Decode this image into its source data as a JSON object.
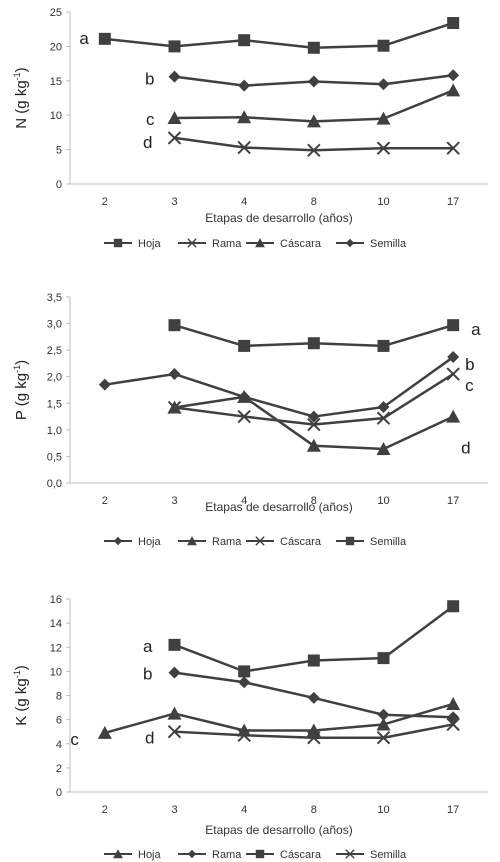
{
  "colors": {
    "line": "#404040",
    "axis": "#bfbfbf",
    "grid": "#d9d9d9"
  },
  "chart_data": [
    {
      "type": "line",
      "categories": [
        "2",
        "3",
        "4",
        "8",
        "10",
        "17"
      ],
      "ylabel_main": "N (g kg",
      "ylabel_sup": "-1",
      "ylabel_close": ")",
      "xlabel": "Etapas de desarrollo (años)",
      "ylim": [
        0,
        25
      ],
      "yticks": [
        "0",
        "5",
        "10",
        "15",
        "20",
        "25"
      ],
      "legend_position": "bottom",
      "series": [
        {
          "name": "Hoja",
          "marker": "square",
          "values": [
            21.1,
            20.0,
            20.9,
            19.8,
            20.1,
            23.4
          ],
          "annotation": "a"
        },
        {
          "name": "Rama",
          "marker": "cross",
          "values": [
            null,
            6.7,
            5.3,
            4.9,
            5.2,
            5.2
          ],
          "annotation": "d"
        },
        {
          "name": "Cáscara",
          "marker": "triangle",
          "values": [
            null,
            9.6,
            9.7,
            9.1,
            9.5,
            13.6
          ],
          "annotation": "c"
        },
        {
          "name": "Semilla",
          "marker": "diamond",
          "values": [
            null,
            15.6,
            14.3,
            14.9,
            14.5,
            15.8
          ],
          "annotation": "b"
        }
      ]
    },
    {
      "type": "line",
      "categories": [
        "2",
        "3",
        "4",
        "8",
        "10",
        "17"
      ],
      "ylabel_main": "P (g kg",
      "ylabel_sup": "-1",
      "ylabel_close": ")",
      "xlabel": "Etapas de desarrollo (años)",
      "ylim": [
        0,
        3.5
      ],
      "yticks": [
        "0,0",
        "0,5",
        "1,0",
        "1,5",
        "2,0",
        "2,5",
        "3,0",
        "3,5"
      ],
      "legend_position": "bottom",
      "series": [
        {
          "name": "Hoja",
          "marker": "diamond",
          "values": [
            1.85,
            2.05,
            1.62,
            1.25,
            1.43,
            2.37
          ],
          "annotation": "b"
        },
        {
          "name": "Rama",
          "marker": "triangle",
          "values": [
            null,
            1.42,
            1.62,
            0.7,
            0.64,
            1.25
          ],
          "annotation": "d"
        },
        {
          "name": "Cáscara",
          "marker": "cross",
          "values": [
            null,
            1.42,
            1.25,
            1.1,
            1.22,
            2.05
          ],
          "annotation": "c"
        },
        {
          "name": "Semilla",
          "marker": "square",
          "values": [
            null,
            2.97,
            2.58,
            2.63,
            2.58,
            2.97
          ],
          "annotation": "a"
        }
      ]
    },
    {
      "type": "line",
      "categories": [
        "2",
        "3",
        "4",
        "8",
        "10",
        "17"
      ],
      "ylabel_main": "K (g kg",
      "ylabel_sup": "-1",
      "ylabel_close": ")",
      "xlabel": "Etapas de desarrollo (años)",
      "ylim": [
        0,
        16
      ],
      "yticks": [
        "0",
        "2",
        "4",
        "6",
        "8",
        "10",
        "12",
        "14",
        "16"
      ],
      "legend_position": "bottom",
      "series": [
        {
          "name": "Hoja",
          "marker": "triangle",
          "values": [
            4.9,
            6.5,
            5.1,
            5.1,
            5.6,
            7.3
          ],
          "annotation": "c"
        },
        {
          "name": "Rama",
          "marker": "diamond",
          "values": [
            null,
            9.9,
            9.1,
            7.8,
            6.4,
            6.2
          ],
          "annotation": "b"
        },
        {
          "name": "Cáscara",
          "marker": "square",
          "values": [
            null,
            12.2,
            10.0,
            10.9,
            11.1,
            15.4
          ],
          "annotation": "a"
        },
        {
          "name": "Semilla",
          "marker": "cross",
          "values": [
            null,
            5.0,
            4.7,
            4.5,
            4.5,
            5.6
          ],
          "annotation": "d"
        }
      ]
    }
  ]
}
